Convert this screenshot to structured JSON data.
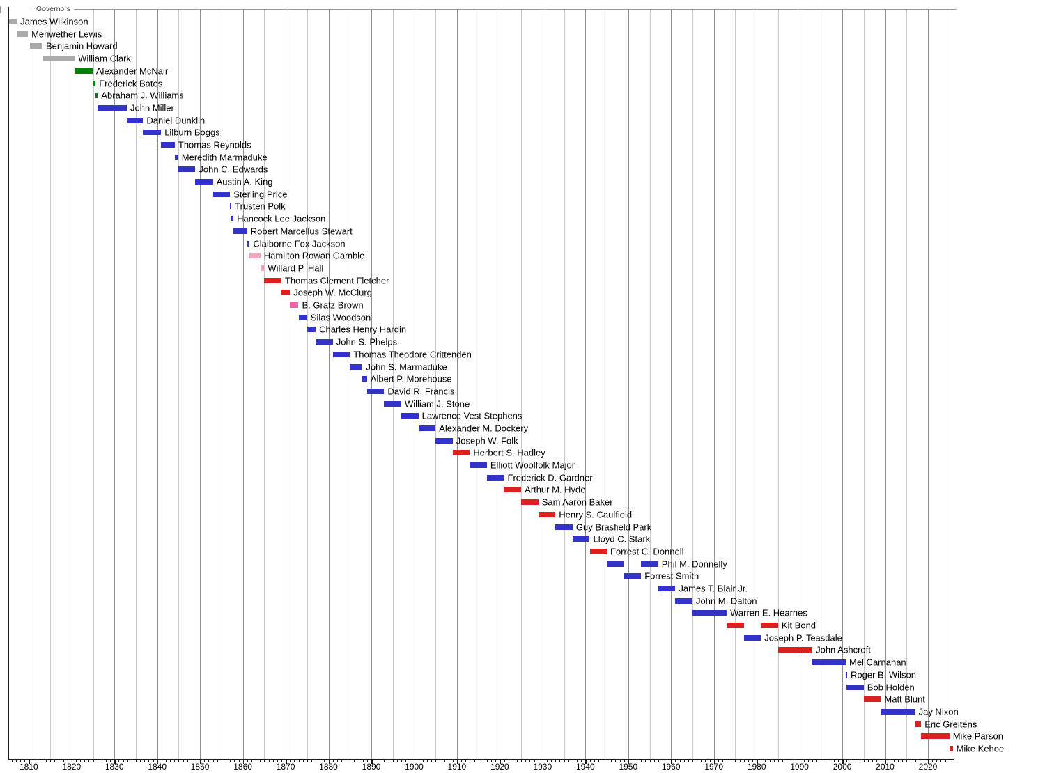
{
  "chart_data": {
    "type": "bar",
    "subtype": "timeline-gantt",
    "title": "Governors",
    "xlabel": "",
    "ylabel": "",
    "legend": "none",
    "grid": "vertical, every 5 years (decade lines darker)",
    "x_axis": {
      "min": 1805.2,
      "max": 2026.5,
      "major_tick_interval_years": 10,
      "minor_tick_interval_years": 1,
      "gridline_interval_years": 5,
      "tick_labels": [
        "1810",
        "1820",
        "1830",
        "1840",
        "1850",
        "1860",
        "1870",
        "1880",
        "1890",
        "1900",
        "1910",
        "1920",
        "1930",
        "1940",
        "1950",
        "1960",
        "1970",
        "1980",
        "1990",
        "2000",
        "2010",
        "2020"
      ]
    },
    "colors": {
      "gray": "#ABABAB",
      "green": "#008000",
      "blue": "#3333CC",
      "red": "#DC2020",
      "lightpink": "#F4A7BC",
      "pink": "#F062A8",
      "axis": "#1a1a1a",
      "gridline_decade": "#919191",
      "gridline_minor": "#C9C9C9",
      "title_rule": "#9a9a9a"
    },
    "series": [
      {
        "name": "James Wilkinson",
        "color": "gray",
        "terms": [
          [
            1805.4,
            1807.2
          ]
        ]
      },
      {
        "name": "Meriwether Lewis",
        "color": "gray",
        "terms": [
          [
            1807.2,
            1809.8
          ]
        ]
      },
      {
        "name": "Benjamin Howard",
        "color": "gray",
        "terms": [
          [
            1810.3,
            1813.2
          ]
        ]
      },
      {
        "name": "William Clark",
        "color": "gray",
        "terms": [
          [
            1813.3,
            1820.7
          ]
        ]
      },
      {
        "name": "Alexander McNair",
        "color": "green",
        "terms": [
          [
            1820.7,
            1824.9
          ]
        ]
      },
      {
        "name": "Frederick Bates",
        "color": "green",
        "terms": [
          [
            1824.9,
            1825.6
          ]
        ]
      },
      {
        "name": "Abraham J. Williams",
        "color": "green",
        "terms": [
          [
            1825.6,
            1826.1
          ]
        ]
      },
      {
        "name": "John Miller",
        "color": "blue",
        "terms": [
          [
            1826.1,
            1832.9
          ]
        ]
      },
      {
        "name": "Daniel Dunklin",
        "color": "blue",
        "terms": [
          [
            1832.9,
            1836.7
          ]
        ]
      },
      {
        "name": "Lilburn Boggs",
        "color": "blue",
        "terms": [
          [
            1836.7,
            1840.9
          ]
        ]
      },
      {
        "name": "Thomas Reynolds",
        "color": "blue",
        "terms": [
          [
            1840.9,
            1844.1
          ]
        ]
      },
      {
        "name": "Meredith Marmaduke",
        "color": "blue",
        "terms": [
          [
            1844.1,
            1844.9
          ]
        ]
      },
      {
        "name": "John C. Edwards",
        "color": "blue",
        "terms": [
          [
            1844.9,
            1848.9
          ]
        ]
      },
      {
        "name": "Austin A. King",
        "color": "blue",
        "terms": [
          [
            1848.9,
            1853.0
          ]
        ]
      },
      {
        "name": "Sterling Price",
        "color": "blue",
        "terms": [
          [
            1853.0,
            1857.0
          ]
        ]
      },
      {
        "name": "Trusten Polk",
        "color": "blue",
        "terms": [
          [
            1857.0,
            1857.2
          ]
        ]
      },
      {
        "name": "Hancock Lee Jackson",
        "color": "blue",
        "terms": [
          [
            1857.2,
            1857.8
          ]
        ]
      },
      {
        "name": "Robert Marcellus Stewart",
        "color": "blue",
        "terms": [
          [
            1857.8,
            1861.0
          ]
        ]
      },
      {
        "name": "Claiborne Fox Jackson",
        "color": "blue",
        "terms": [
          [
            1861.0,
            1861.6
          ]
        ]
      },
      {
        "name": "Hamilton Rowan Gamble",
        "color": "lightpink",
        "terms": [
          [
            1861.6,
            1864.1
          ]
        ]
      },
      {
        "name": "Willard P. Hall",
        "color": "lightpink",
        "terms": [
          [
            1864.1,
            1865.0
          ]
        ]
      },
      {
        "name": "Thomas Clement Fletcher",
        "color": "red",
        "terms": [
          [
            1865.0,
            1869.0
          ]
        ]
      },
      {
        "name": "Joseph W. McClurg",
        "color": "red",
        "terms": [
          [
            1869.0,
            1871.0
          ]
        ]
      },
      {
        "name": "B. Gratz Brown",
        "color": "pink",
        "terms": [
          [
            1871.0,
            1873.0
          ]
        ]
      },
      {
        "name": "Silas Woodson",
        "color": "blue",
        "terms": [
          [
            1873.0,
            1875.0
          ]
        ]
      },
      {
        "name": "Charles Henry Hardin",
        "color": "blue",
        "terms": [
          [
            1875.0,
            1877.0
          ]
        ]
      },
      {
        "name": "John S. Phelps",
        "color": "blue",
        "terms": [
          [
            1877.0,
            1881.0
          ]
        ]
      },
      {
        "name": "Thomas Theodore Crittenden",
        "color": "blue",
        "terms": [
          [
            1881.0,
            1885.0
          ]
        ]
      },
      {
        "name": "John S. Marmaduke",
        "color": "blue",
        "terms": [
          [
            1885.0,
            1887.95
          ]
        ]
      },
      {
        "name": "Albert P. Morehouse",
        "color": "blue",
        "terms": [
          [
            1887.95,
            1889.0
          ]
        ]
      },
      {
        "name": "David R. Francis",
        "color": "blue",
        "terms": [
          [
            1889.0,
            1893.0
          ]
        ]
      },
      {
        "name": "William J. Stone",
        "color": "blue",
        "terms": [
          [
            1893.0,
            1897.0
          ]
        ]
      },
      {
        "name": "Lawrence Vest Stephens",
        "color": "blue",
        "terms": [
          [
            1897.0,
            1901.0
          ]
        ]
      },
      {
        "name": "Alexander M. Dockery",
        "color": "blue",
        "terms": [
          [
            1901.0,
            1905.0
          ]
        ]
      },
      {
        "name": "Joseph W. Folk",
        "color": "blue",
        "terms": [
          [
            1905.0,
            1909.0
          ]
        ]
      },
      {
        "name": "Herbert S. Hadley",
        "color": "red",
        "terms": [
          [
            1909.0,
            1913.0
          ]
        ]
      },
      {
        "name": "Elliott Woolfolk Major",
        "color": "blue",
        "terms": [
          [
            1913.0,
            1917.0
          ]
        ]
      },
      {
        "name": "Frederick D. Gardner",
        "color": "blue",
        "terms": [
          [
            1917.0,
            1921.0
          ]
        ]
      },
      {
        "name": "Arthur M. Hyde",
        "color": "red",
        "terms": [
          [
            1921.0,
            1925.0
          ]
        ]
      },
      {
        "name": "Sam Aaron Baker",
        "color": "red",
        "terms": [
          [
            1925.0,
            1929.0
          ]
        ]
      },
      {
        "name": "Henry S. Caulfield",
        "color": "red",
        "terms": [
          [
            1929.0,
            1933.0
          ]
        ]
      },
      {
        "name": "Guy Brasfield Park",
        "color": "blue",
        "terms": [
          [
            1933.0,
            1937.0
          ]
        ]
      },
      {
        "name": "Lloyd C. Stark",
        "color": "blue",
        "terms": [
          [
            1937.0,
            1941.0
          ]
        ]
      },
      {
        "name": "Forrest C. Donnell",
        "color": "red",
        "terms": [
          [
            1941.0,
            1945.0
          ]
        ]
      },
      {
        "name": "Phil M. Donnelly",
        "color": "blue",
        "terms": [
          [
            1945.0,
            1949.0
          ],
          [
            1953.0,
            1957.0
          ]
        ]
      },
      {
        "name": "Forrest Smith",
        "color": "blue",
        "terms": [
          [
            1949.0,
            1953.0
          ]
        ]
      },
      {
        "name": "James T. Blair Jr.",
        "color": "blue",
        "terms": [
          [
            1957.0,
            1961.0
          ]
        ]
      },
      {
        "name": "John M. Dalton",
        "color": "blue",
        "terms": [
          [
            1961.0,
            1965.0
          ]
        ]
      },
      {
        "name": "Warren E. Hearnes",
        "color": "blue",
        "terms": [
          [
            1965.0,
            1973.0
          ]
        ]
      },
      {
        "name": "Kit Bond",
        "color": "red",
        "terms": [
          [
            1973.0,
            1977.0
          ],
          [
            1981.0,
            1985.0
          ]
        ]
      },
      {
        "name": "Joseph P. Teasdale",
        "color": "blue",
        "terms": [
          [
            1977.0,
            1981.0
          ]
        ]
      },
      {
        "name": "John Ashcroft",
        "color": "red",
        "terms": [
          [
            1985.0,
            1993.0
          ]
        ]
      },
      {
        "name": "Mel Carnahan",
        "color": "blue",
        "terms": [
          [
            1993.0,
            2000.8
          ]
        ]
      },
      {
        "name": "Roger B. Wilson",
        "color": "blue",
        "terms": [
          [
            2000.8,
            2001.0
          ]
        ]
      },
      {
        "name": "Bob Holden",
        "color": "blue",
        "terms": [
          [
            2001.0,
            2005.0
          ]
        ]
      },
      {
        "name": "Matt Blunt",
        "color": "red",
        "terms": [
          [
            2005.0,
            2009.0
          ]
        ]
      },
      {
        "name": "Jay Nixon",
        "color": "blue",
        "terms": [
          [
            2009.0,
            2017.0
          ]
        ]
      },
      {
        "name": "Eric Greitens",
        "color": "red",
        "terms": [
          [
            2017.0,
            2018.4
          ]
        ]
      },
      {
        "name": "Mike Parson",
        "color": "red",
        "terms": [
          [
            2018.4,
            2025.0
          ]
        ]
      },
      {
        "name": "Mike Kehoe",
        "color": "red",
        "terms": [
          [
            2025.0,
            2025.8
          ]
        ]
      }
    ]
  },
  "layout_note_visible_text_only": true
}
